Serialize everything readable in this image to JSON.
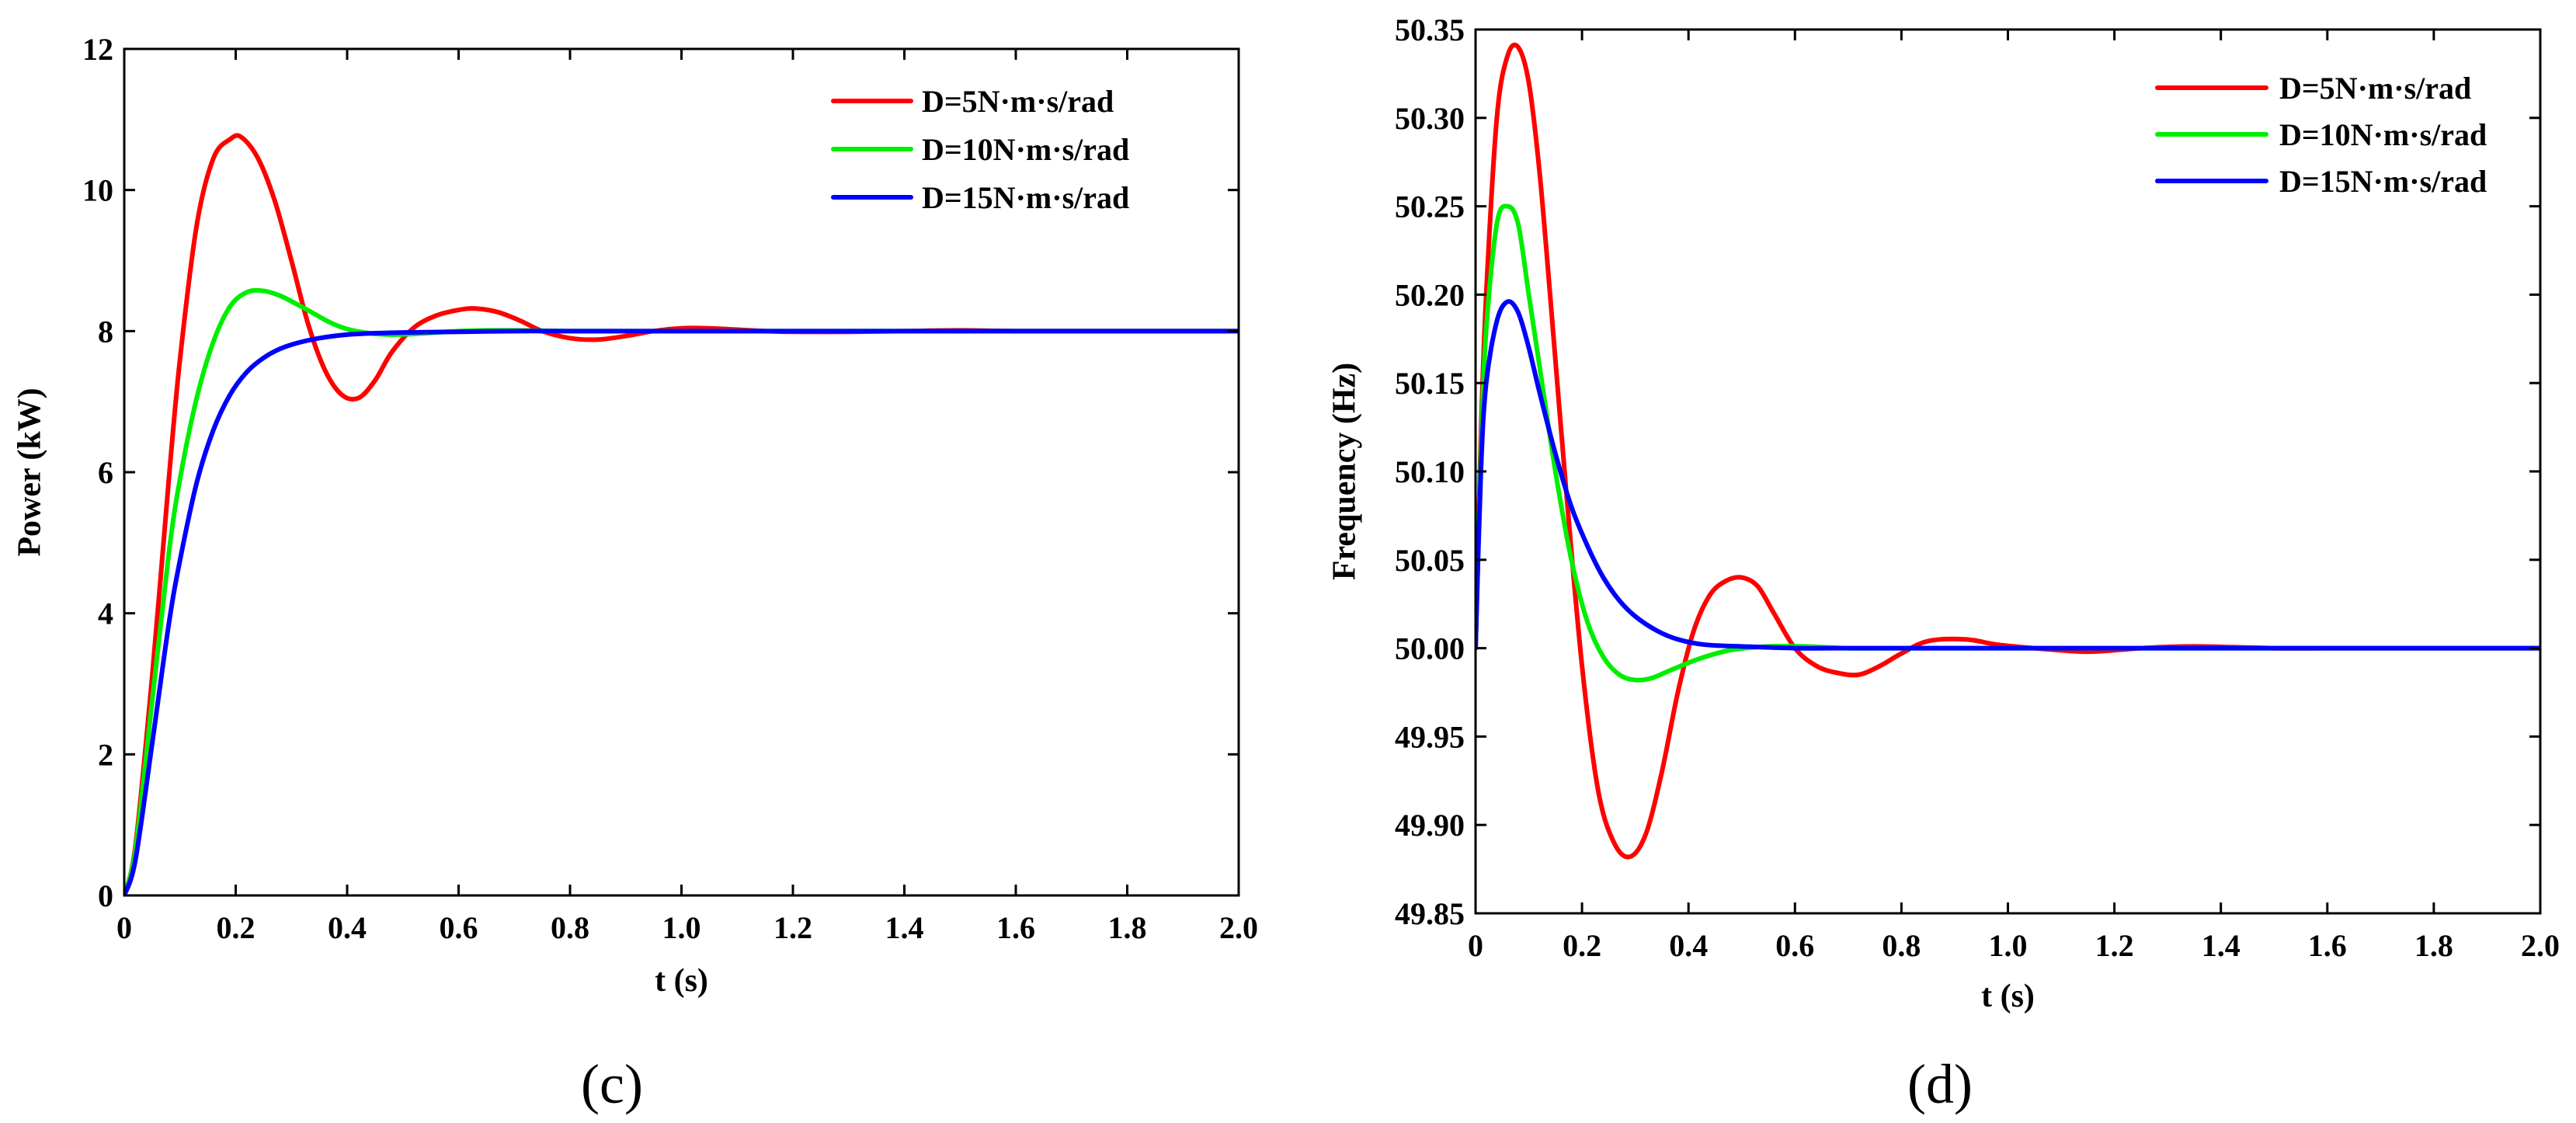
{
  "chart_data": [
    {
      "type": "line",
      "panel_label": "(c)",
      "xlabel": "t (s)",
      "ylabel": "Power (kW)",
      "xlim": [
        0,
        2.0
      ],
      "ylim": [
        0,
        12
      ],
      "x_ticks": [
        0,
        0.2,
        0.4,
        0.6,
        0.8,
        1.0,
        1.2,
        1.4,
        1.6,
        1.8,
        2.0
      ],
      "x_tick_labels": [
        "0",
        "0.2",
        "0.4",
        "0.6",
        "0.8",
        "1.0",
        "1.2",
        "1.4",
        "1.6",
        "1.8",
        "2.0"
      ],
      "y_ticks": [
        0,
        2,
        4,
        6,
        8,
        10,
        12
      ],
      "y_tick_labels": [
        "0",
        "2",
        "4",
        "6",
        "8",
        "10",
        "12"
      ],
      "legend_position": "top-right",
      "grid": false,
      "series": [
        {
          "name": "D=5N·m·s/rad",
          "color": "#ff0000",
          "x": [
            0,
            0.02,
            0.05,
            0.08,
            0.1,
            0.13,
            0.16,
            0.19,
            0.21,
            0.24,
            0.27,
            0.3,
            0.33,
            0.36,
            0.39,
            0.42,
            0.45,
            0.48,
            0.52,
            0.56,
            0.6,
            0.63,
            0.67,
            0.71,
            0.75,
            0.8,
            0.85,
            0.9,
            0.95,
            1.0,
            1.05,
            1.1,
            1.15,
            1.2,
            1.3,
            1.4,
            1.5,
            1.6,
            1.8,
            2.0
          ],
          "y": [
            0,
            0.7,
            3.1,
            5.9,
            7.6,
            9.5,
            10.45,
            10.72,
            10.75,
            10.45,
            9.85,
            9.0,
            8.1,
            7.45,
            7.1,
            7.05,
            7.3,
            7.7,
            8.05,
            8.22,
            8.3,
            8.32,
            8.27,
            8.15,
            8.0,
            7.9,
            7.88,
            7.93,
            8.0,
            8.04,
            8.04,
            8.02,
            8.0,
            7.99,
            7.99,
            8.0,
            8.01,
            8.0,
            8.0,
            8.0
          ]
        },
        {
          "name": "D=10N·m·s/rad",
          "color": "#00ee00",
          "x": [
            0,
            0.02,
            0.05,
            0.08,
            0.1,
            0.13,
            0.16,
            0.19,
            0.22,
            0.25,
            0.28,
            0.31,
            0.34,
            0.37,
            0.4,
            0.44,
            0.48,
            0.52,
            0.56,
            0.6,
            0.65,
            0.7,
            0.8,
            0.9,
            1.0,
            1.2,
            1.5,
            2.0
          ],
          "y": [
            0,
            0.65,
            2.75,
            4.85,
            5.9,
            7.05,
            7.85,
            8.35,
            8.55,
            8.57,
            8.5,
            8.38,
            8.25,
            8.12,
            8.03,
            7.97,
            7.95,
            7.96,
            7.98,
            8.0,
            8.01,
            8.01,
            8.0,
            8.0,
            8.0,
            8.0,
            8.0,
            8.0
          ]
        },
        {
          "name": "D=15N·m·s/rad",
          "color": "#0000ff",
          "x": [
            0,
            0.02,
            0.05,
            0.08,
            0.1,
            0.13,
            0.16,
            0.19,
            0.22,
            0.25,
            0.28,
            0.31,
            0.35,
            0.4,
            0.45,
            0.5,
            0.6,
            0.7,
            0.8,
            1.0,
            1.5,
            2.0
          ],
          "y": [
            0,
            0.5,
            2.15,
            3.85,
            4.75,
            5.85,
            6.6,
            7.1,
            7.42,
            7.62,
            7.75,
            7.83,
            7.9,
            7.95,
            7.97,
            7.98,
            7.99,
            8.0,
            8.0,
            8.0,
            8.0,
            8.0
          ]
        }
      ]
    },
    {
      "type": "line",
      "panel_label": "(d)",
      "xlabel": "t (s)",
      "ylabel": "Frequency (Hz)",
      "xlim": [
        0,
        2.0
      ],
      "ylim": [
        49.85,
        50.35
      ],
      "x_ticks": [
        0,
        0.2,
        0.4,
        0.6,
        0.8,
        1.0,
        1.2,
        1.4,
        1.6,
        1.8,
        2.0
      ],
      "x_tick_labels": [
        "0",
        "0.2",
        "0.4",
        "0.6",
        "0.8",
        "1.0",
        "1.2",
        "1.4",
        "1.6",
        "1.8",
        "2.0"
      ],
      "y_ticks": [
        49.85,
        49.9,
        49.95,
        50.0,
        50.05,
        50.1,
        50.15,
        50.2,
        50.25,
        50.3,
        50.35
      ],
      "y_tick_labels": [
        "49.85",
        "49.90",
        "49.95",
        "50.00",
        "50.05",
        "50.10",
        "50.15",
        "50.20",
        "50.25",
        "50.30",
        "50.35"
      ],
      "legend_position": "top-right",
      "grid": false,
      "series": [
        {
          "name": "D=5N·m·s/rad",
          "color": "#ff0000",
          "x": [
            0,
            0.01,
            0.02,
            0.04,
            0.06,
            0.08,
            0.1,
            0.12,
            0.14,
            0.17,
            0.2,
            0.23,
            0.26,
            0.29,
            0.32,
            0.35,
            0.38,
            0.41,
            0.44,
            0.47,
            0.5,
            0.53,
            0.56,
            0.6,
            0.64,
            0.68,
            0.72,
            0.76,
            0.8,
            0.85,
            0.92,
            0.98,
            1.05,
            1.15,
            1.25,
            1.35,
            1.5,
            1.65,
            1.8,
            2.0
          ],
          "y": [
            50.0,
            50.12,
            50.2,
            50.3,
            50.335,
            50.34,
            50.32,
            50.27,
            50.2,
            50.09,
            49.99,
            49.92,
            49.89,
            49.882,
            49.895,
            49.93,
            49.975,
            50.01,
            50.03,
            50.038,
            50.04,
            50.035,
            50.02,
            50.0,
            49.99,
            49.986,
            49.985,
            49.99,
            49.997,
            50.004,
            50.005,
            50.002,
            50.0,
            49.998,
            50.0,
            50.001,
            50.0,
            50.0,
            50.0,
            50.0
          ]
        },
        {
          "name": "D=10N·m·s/rad",
          "color": "#00ee00",
          "x": [
            0,
            0.01,
            0.02,
            0.04,
            0.06,
            0.08,
            0.1,
            0.12,
            0.15,
            0.18,
            0.21,
            0.24,
            0.27,
            0.3,
            0.33,
            0.37,
            0.42,
            0.48,
            0.55,
            0.62,
            0.7,
            0.8,
            1.0,
            1.3,
            1.6,
            2.0
          ],
          "y": [
            50.0,
            50.11,
            50.18,
            50.24,
            50.25,
            50.24,
            50.2,
            50.16,
            50.1,
            50.05,
            50.015,
            49.995,
            49.985,
            49.982,
            49.983,
            49.988,
            49.994,
            49.999,
            50.001,
            50.001,
            50.0,
            50.0,
            50.0,
            50.0,
            50.0,
            50.0
          ]
        },
        {
          "name": "D=15N·m·s/rad",
          "color": "#0000ff",
          "x": [
            0,
            0.01,
            0.02,
            0.04,
            0.06,
            0.08,
            0.1,
            0.12,
            0.15,
            0.18,
            0.21,
            0.24,
            0.27,
            0.3,
            0.34,
            0.38,
            0.43,
            0.5,
            0.6,
            0.7,
            0.8,
            1.0,
            1.5,
            2.0
          ],
          "y": [
            50.0,
            50.1,
            50.15,
            50.185,
            50.196,
            50.19,
            50.17,
            50.145,
            50.11,
            50.08,
            50.058,
            50.04,
            50.027,
            50.018,
            50.01,
            50.005,
            50.002,
            50.001,
            50.0,
            50.0,
            50.0,
            50.0,
            50.0,
            50.0
          ]
        }
      ]
    }
  ]
}
